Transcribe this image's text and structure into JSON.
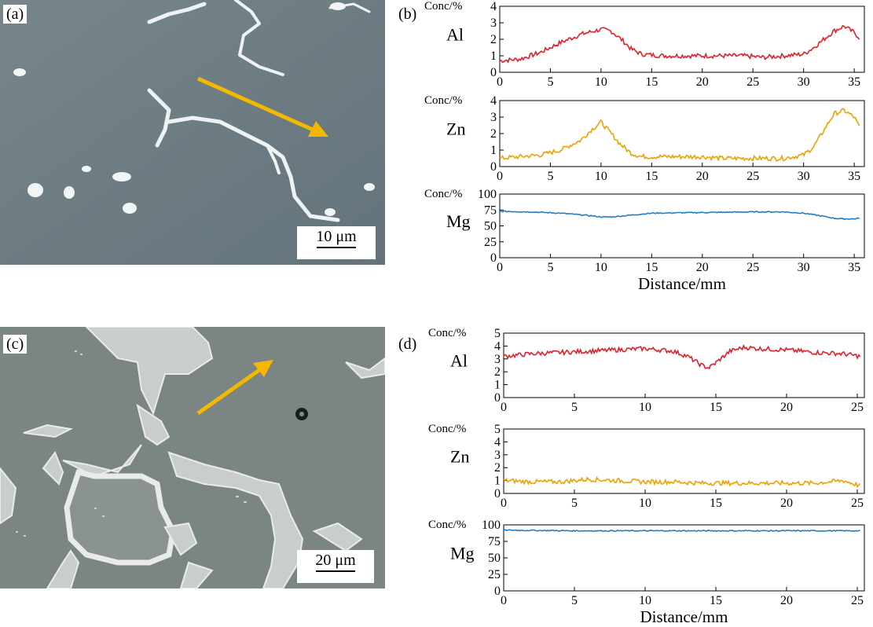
{
  "panels": {
    "a": {
      "label": "(a)",
      "scale_label": "10 μm"
    },
    "b": {
      "label": "(b)"
    },
    "c": {
      "label": "(c)",
      "scale_label": "20 μm"
    },
    "d": {
      "label": "(d)"
    }
  },
  "colors": {
    "Al": "#e0202c",
    "Zn": "#f0a000",
    "Mg": "#1f7fc4",
    "arrow": "#f5b800"
  },
  "chart_data": [
    {
      "panel": "b",
      "type": "line",
      "element": "Al",
      "ylabel": "Conc/%",
      "xlabel": "",
      "xlim": [
        0,
        36
      ],
      "ylim": [
        0,
        4
      ],
      "xticks": [
        0,
        5,
        10,
        15,
        20,
        25,
        30,
        35
      ],
      "yticks": [
        0,
        1,
        2,
        3,
        4
      ],
      "x": [
        0,
        2,
        4,
        6,
        8,
        10,
        11,
        12,
        13,
        14,
        16,
        18,
        20,
        22,
        24,
        26,
        28,
        30,
        31,
        32,
        33,
        34,
        35,
        35.5
      ],
      "values": [
        0.7,
        0.8,
        1.2,
        1.8,
        2.3,
        2.6,
        2.5,
        2.0,
        1.4,
        1.1,
        1.0,
        1.0,
        1.0,
        1.0,
        1.0,
        0.9,
        1.0,
        1.1,
        1.5,
        2.0,
        2.5,
        2.8,
        2.4,
        2.1
      ]
    },
    {
      "panel": "b",
      "type": "line",
      "element": "Zn",
      "ylabel": "Conc/%",
      "xlabel": "",
      "xlim": [
        0,
        36
      ],
      "ylim": [
        0,
        4
      ],
      "xticks": [
        0,
        5,
        10,
        15,
        20,
        25,
        30,
        35
      ],
      "yticks": [
        0,
        1,
        2,
        3,
        4
      ],
      "x": [
        0,
        2,
        4,
        6,
        8,
        9,
        10,
        11,
        12,
        13,
        14,
        16,
        18,
        20,
        22,
        24,
        26,
        28,
        30,
        31,
        32,
        33,
        34,
        35,
        35.5
      ],
      "values": [
        0.5,
        0.6,
        0.7,
        1.0,
        1.6,
        2.2,
        2.7,
        2.0,
        1.3,
        0.8,
        0.6,
        0.6,
        0.6,
        0.6,
        0.5,
        0.5,
        0.5,
        0.5,
        0.7,
        1.2,
        2.2,
        3.2,
        3.4,
        3.0,
        2.4
      ]
    },
    {
      "panel": "b",
      "type": "line",
      "element": "Mg",
      "ylabel": "Conc/%",
      "xlabel": "Distance/mm",
      "xlim": [
        0,
        36
      ],
      "ylim": [
        0,
        100
      ],
      "xticks": [
        0,
        5,
        10,
        15,
        20,
        25,
        30,
        35
      ],
      "yticks": [
        0,
        25,
        50,
        75,
        100
      ],
      "x": [
        0,
        3,
        6,
        9,
        10,
        11,
        13,
        15,
        20,
        25,
        28,
        30,
        32,
        33,
        34,
        35,
        35.5
      ],
      "values": [
        73,
        72,
        70,
        66,
        64,
        64,
        67,
        70,
        71,
        72,
        72,
        70,
        65,
        62,
        61,
        61,
        62
      ]
    },
    {
      "panel": "d",
      "type": "line",
      "element": "Al",
      "ylabel": "Conc/%",
      "xlabel": "",
      "xlim": [
        0,
        25.5
      ],
      "ylim": [
        0,
        5
      ],
      "xticks": [
        0,
        5,
        10,
        15,
        20,
        25
      ],
      "yticks": [
        0,
        1,
        2,
        3,
        4,
        5
      ],
      "x": [
        0,
        2,
        4,
        6,
        8,
        10,
        12,
        13,
        14,
        14.5,
        15,
        16,
        17,
        18,
        20,
        22,
        24,
        25.2
      ],
      "values": [
        3.2,
        3.4,
        3.5,
        3.6,
        3.7,
        3.8,
        3.6,
        3.2,
        2.5,
        2.3,
        2.7,
        3.6,
        3.9,
        3.8,
        3.7,
        3.5,
        3.4,
        3.2
      ]
    },
    {
      "panel": "d",
      "type": "line",
      "element": "Zn",
      "ylabel": "Conc/%",
      "xlabel": "",
      "xlim": [
        0,
        25.5
      ],
      "ylim": [
        0,
        5
      ],
      "xticks": [
        0,
        5,
        10,
        15,
        20,
        25
      ],
      "yticks": [
        0,
        1,
        2,
        3,
        4,
        5
      ],
      "x": [
        0,
        2,
        4,
        6,
        8,
        10,
        12,
        14,
        16,
        18,
        20,
        22,
        24,
        25.2
      ],
      "values": [
        1.0,
        0.9,
        0.9,
        1.1,
        1.0,
        0.9,
        0.9,
        0.8,
        0.8,
        0.8,
        0.8,
        0.8,
        1.0,
        0.6
      ]
    },
    {
      "panel": "d",
      "type": "line",
      "element": "Mg",
      "ylabel": "Conc/%",
      "xlabel": "Distance/mm",
      "xlim": [
        0,
        25.5
      ],
      "ylim": [
        0,
        100
      ],
      "xticks": [
        0,
        5,
        10,
        15,
        20,
        25
      ],
      "yticks": [
        0,
        25,
        50,
        75,
        100
      ],
      "x": [
        0,
        5,
        10,
        15,
        20,
        25.2
      ],
      "values": [
        92,
        91,
        91,
        91,
        91,
        91
      ]
    }
  ]
}
